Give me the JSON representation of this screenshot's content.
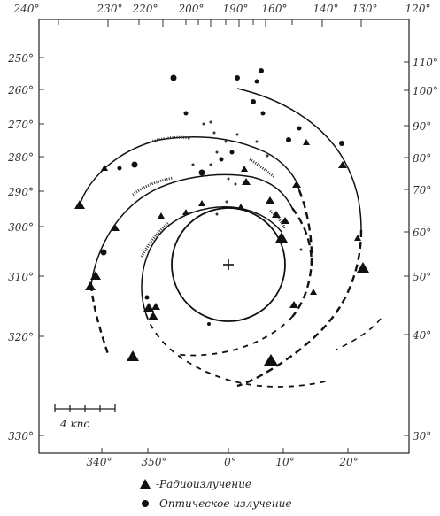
{
  "top_axis_labels": [
    "240°",
    "230°",
    "220°",
    "200°",
    "190°",
    "160°",
    "140°",
    "130°",
    "120°"
  ],
  "left_axis_labels": [
    "250°",
    "260°",
    "270°",
    "280°",
    "290°",
    "300°",
    "310°",
    "320°",
    "330°"
  ],
  "right_axis_labels": [
    "110°",
    "100°",
    "90°",
    "80°",
    "70°",
    "60°",
    "50°",
    "40°",
    "30°"
  ],
  "bottom_axis_labels": [
    "340°",
    "350°",
    "0°",
    "10°",
    "20°"
  ],
  "scale_bar": {
    "label": "4 кпс"
  },
  "legend": {
    "radio_label": "-Радиоизлучение",
    "optical_label": "-Оптическое излучение"
  }
}
